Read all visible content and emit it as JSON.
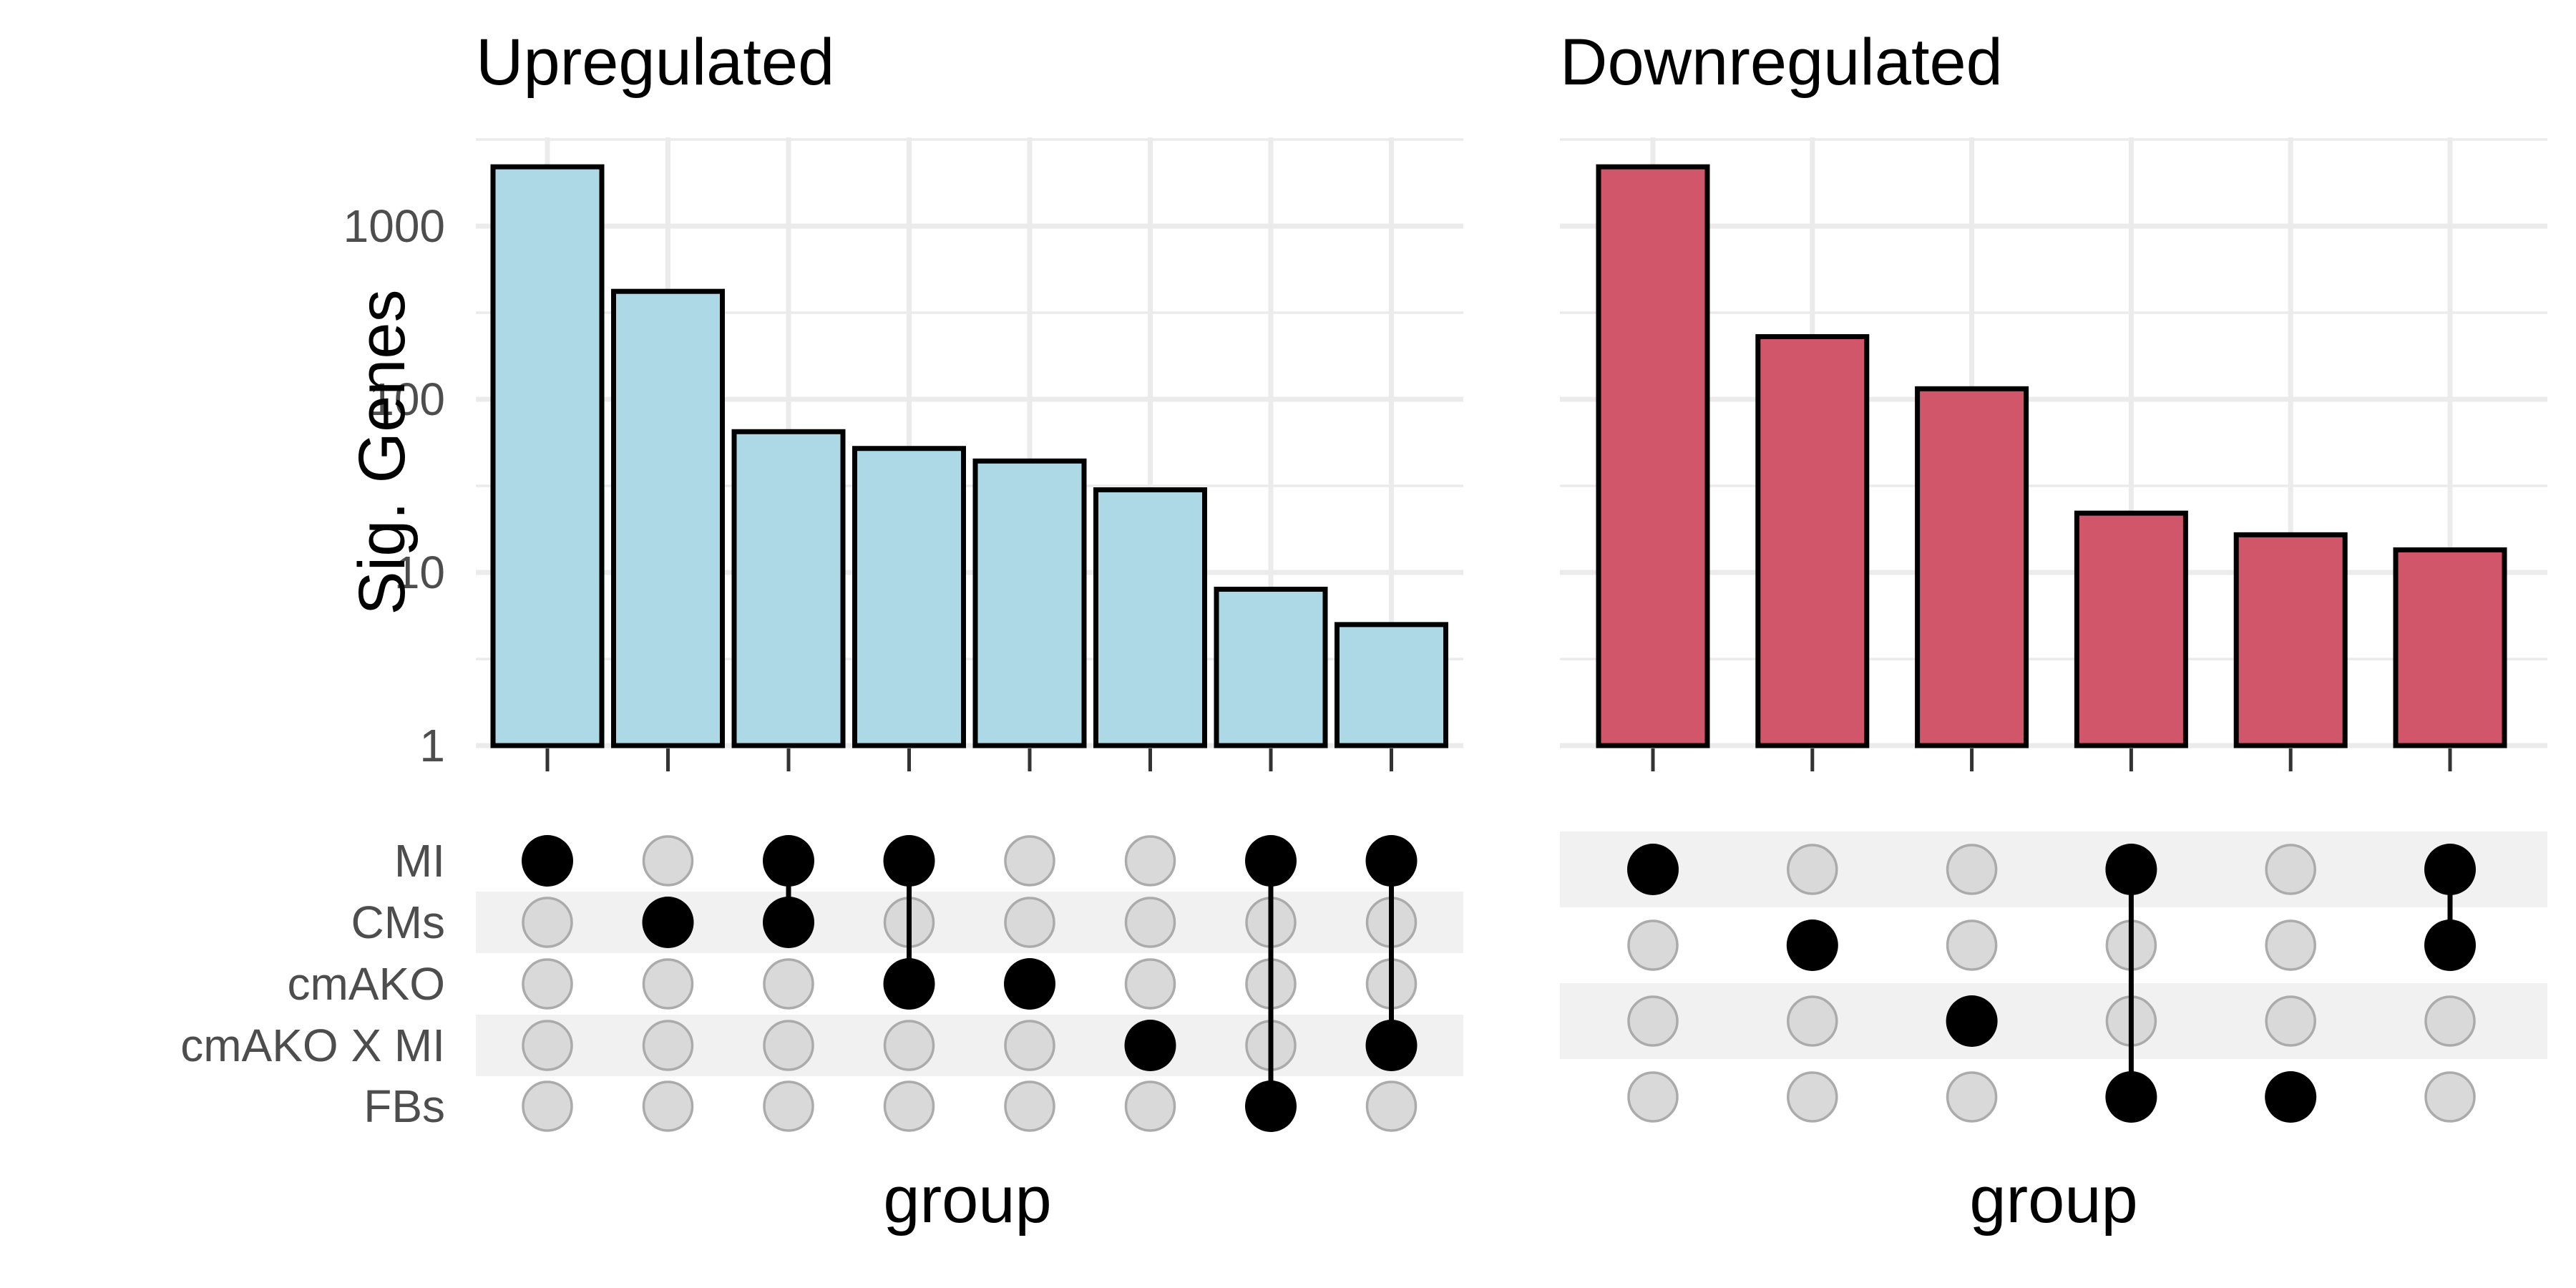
{
  "chart_data": [
    {
      "type": "bar",
      "subtype": "upset",
      "title": "Upregulated",
      "ylabel": "Sig. Genes",
      "xlabel": "group",
      "yscale": "log10",
      "ylim": [
        1,
        2500
      ],
      "yticks": [
        "1",
        "10",
        "100",
        "1000"
      ],
      "grid": true,
      "bar_color": "#ADD8E6",
      "sets": [
        "MI",
        "CMs",
        "cmAKO",
        "cmAKO X MI",
        "FBs"
      ],
      "intersections": [
        {
          "sets": [
            "MI"
          ],
          "value": 2200
        },
        {
          "sets": [
            "CMs"
          ],
          "value": 420
        },
        {
          "sets": [
            "MI",
            "CMs"
          ],
          "value": 65
        },
        {
          "sets": [
            "MI",
            "cmAKO"
          ],
          "value": 52
        },
        {
          "sets": [
            "cmAKO"
          ],
          "value": 44
        },
        {
          "sets": [
            "cmAKO X MI"
          ],
          "value": 30
        },
        {
          "sets": [
            "MI",
            "FBs"
          ],
          "value": 8
        },
        {
          "sets": [
            "MI",
            "cmAKO X MI"
          ],
          "value": 5
        }
      ]
    },
    {
      "type": "bar",
      "subtype": "upset",
      "title": "Downregulated",
      "xlabel": "group",
      "yscale": "log10",
      "ylim": [
        1,
        2500
      ],
      "grid": true,
      "bar_color": "#D1566A",
      "sets": [
        "",
        "",
        "",
        ""
      ],
      "intersections": [
        {
          "sets": [
            0
          ],
          "value": 2200
        },
        {
          "sets": [
            1
          ],
          "value": 230
        },
        {
          "sets": [
            2
          ],
          "value": 115
        },
        {
          "sets": [
            0,
            3
          ],
          "value": 22
        },
        {
          "sets": [
            3
          ],
          "value": 16.5
        },
        {
          "sets": [
            0,
            1
          ],
          "value": 13.5
        }
      ]
    }
  ]
}
